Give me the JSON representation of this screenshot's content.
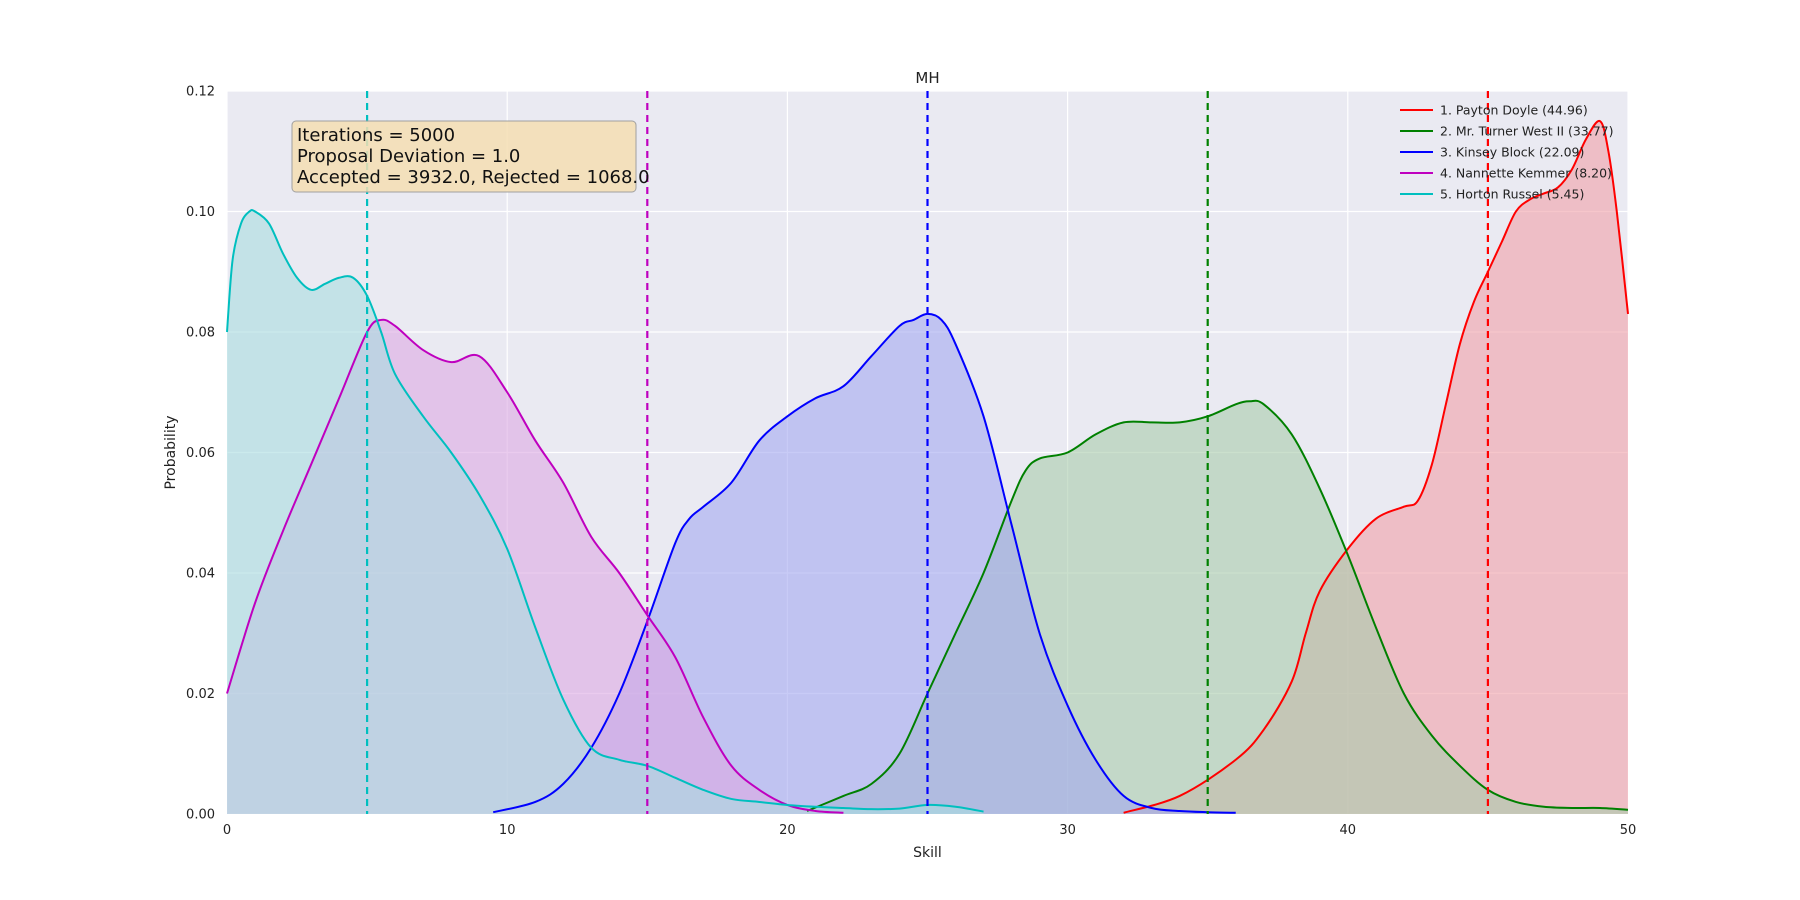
{
  "chart_data": {
    "type": "area",
    "title": "MH",
    "xlabel": "Skill",
    "ylabel": "Probability",
    "xlim": [
      0,
      50
    ],
    "ylim": [
      0,
      0.12
    ],
    "x_ticks": [
      "0",
      "10",
      "20",
      "30",
      "40",
      "50"
    ],
    "y_ticks": [
      "0.00",
      "0.02",
      "0.04",
      "0.06",
      "0.08",
      "0.10",
      "0.12"
    ],
    "grid": true,
    "legend_position": "top-right",
    "annotation": {
      "lines": [
        "Iterations = 5000",
        "Proposal Deviation = 1.0",
        "Accepted = 3932.0, Rejected = 1068.0"
      ],
      "position": "top-left"
    },
    "series": [
      {
        "name": "1. Payton Doyle (44.96)",
        "color": "#ff0000",
        "fill": "#f0a0a8",
        "mean": 45.0,
        "x": [
          32,
          34,
          36,
          37,
          38,
          38.5,
          39,
          40,
          41,
          42,
          42.5,
          43,
          43.5,
          44,
          44.5,
          45,
          45.5,
          46,
          46.5,
          47,
          47.5,
          48,
          48.5,
          49,
          49.3,
          49.6,
          50
        ],
        "y": [
          0.0002,
          0.003,
          0.009,
          0.014,
          0.022,
          0.03,
          0.037,
          0.044,
          0.049,
          0.051,
          0.052,
          0.058,
          0.068,
          0.078,
          0.085,
          0.09,
          0.095,
          0.1,
          0.102,
          0.103,
          0.104,
          0.107,
          0.112,
          0.115,
          0.11,
          0.1,
          0.083
        ]
      },
      {
        "name": "2. Mr. Turner West II (33.77)",
        "color": "#008000",
        "fill": "#a8ccac",
        "mean": 35.0,
        "x": [
          20.7,
          22,
          23,
          24,
          25,
          26,
          27,
          28,
          28.5,
          29,
          30,
          31,
          32,
          33,
          34,
          35,
          36,
          36.5,
          37,
          38,
          39,
          40,
          41,
          42,
          43,
          44,
          45,
          46,
          47,
          48,
          49,
          50
        ],
        "y": [
          0.0005,
          0.003,
          0.005,
          0.01,
          0.02,
          0.03,
          0.04,
          0.052,
          0.057,
          0.059,
          0.06,
          0.063,
          0.065,
          0.065,
          0.065,
          0.066,
          0.068,
          0.0685,
          0.068,
          0.063,
          0.054,
          0.043,
          0.031,
          0.02,
          0.013,
          0.008,
          0.004,
          0.002,
          0.0012,
          0.001,
          0.001,
          0.0007
        ]
      },
      {
        "name": "3. Kinsey Block (22.09)",
        "color": "#0000ff",
        "fill": "#a4a8f0",
        "mean": 25.0,
        "x": [
          9.5,
          11,
          12,
          13,
          14,
          15,
          16,
          16.5,
          17,
          18,
          19,
          20,
          21,
          22,
          23,
          24,
          24.5,
          25,
          25.5,
          26,
          27,
          28,
          29,
          30,
          31,
          32,
          33,
          34,
          35,
          36
        ],
        "y": [
          0.0003,
          0.002,
          0.005,
          0.011,
          0.02,
          0.032,
          0.045,
          0.049,
          0.051,
          0.055,
          0.062,
          0.066,
          0.069,
          0.071,
          0.076,
          0.081,
          0.082,
          0.083,
          0.082,
          0.078,
          0.066,
          0.048,
          0.03,
          0.018,
          0.009,
          0.003,
          0.001,
          0.0005,
          0.0003,
          0.0002
        ]
      },
      {
        "name": "4. Nannette Kemmer (8.20)",
        "color": "#bf00bf",
        "fill": "#dca8e2",
        "mean": 15.0,
        "x": [
          0,
          1,
          2,
          3,
          4,
          5,
          5.5,
          6,
          7,
          8,
          9,
          10,
          11,
          12,
          13,
          14,
          15,
          16,
          17,
          18,
          19,
          20,
          21,
          22
        ],
        "y": [
          0.02,
          0.035,
          0.047,
          0.058,
          0.069,
          0.08,
          0.082,
          0.081,
          0.077,
          0.075,
          0.076,
          0.07,
          0.062,
          0.055,
          0.046,
          0.04,
          0.033,
          0.026,
          0.016,
          0.008,
          0.004,
          0.0015,
          0.0005,
          0.0002
        ]
      },
      {
        "name": "5. Horton Russel (5.45)",
        "color": "#00bfbf",
        "fill": "#a8dce0",
        "mean": 5.0,
        "x": [
          0,
          0.2,
          0.5,
          0.8,
          1,
          1.5,
          2,
          2.5,
          3,
          3.5,
          4,
          4.5,
          5,
          5.5,
          6,
          7,
          8,
          9,
          10,
          11,
          12,
          13,
          14,
          15,
          16,
          17,
          18,
          19,
          20,
          21,
          22,
          23,
          24,
          25,
          26,
          27
        ],
        "y": [
          0.08,
          0.092,
          0.098,
          0.1,
          0.1,
          0.098,
          0.093,
          0.089,
          0.087,
          0.088,
          0.089,
          0.089,
          0.086,
          0.08,
          0.073,
          0.066,
          0.06,
          0.053,
          0.044,
          0.031,
          0.019,
          0.011,
          0.009,
          0.008,
          0.006,
          0.004,
          0.0025,
          0.002,
          0.0015,
          0.0012,
          0.001,
          0.0008,
          0.0009,
          0.0015,
          0.0012,
          0.0004
        ]
      }
    ]
  }
}
